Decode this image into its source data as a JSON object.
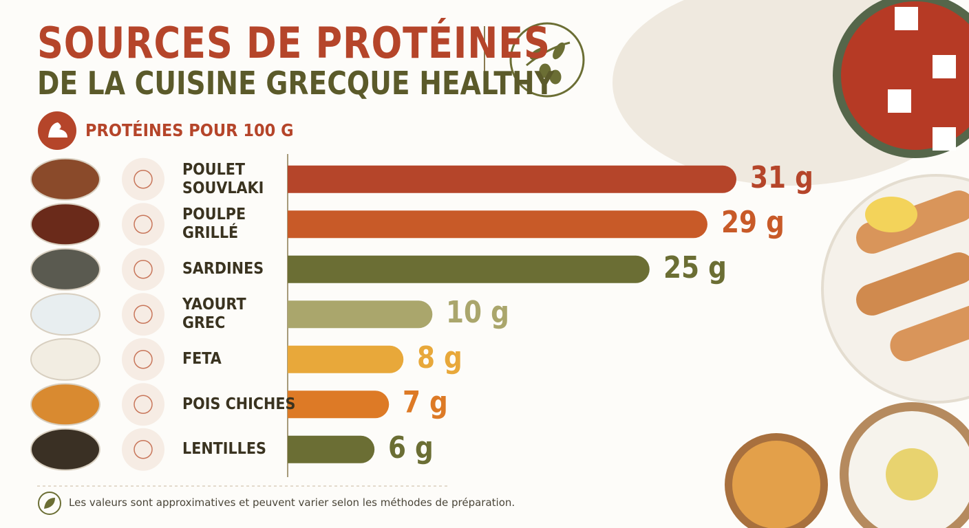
{
  "chart_data": {
    "type": "bar",
    "orientation": "horizontal",
    "title": "SOURCES DE PROTÉINES",
    "subtitle": "DE LA CUISINE GRECQUE HEALTHY",
    "value_axis_label": "PROTÉINES POUR 100 G",
    "categories": [
      "POULET\nSOUVLAKI",
      "POULPE\nGRILLÉ",
      "SARDINES",
      "YAOURT\nGREC",
      "FETA",
      "POIS CHICHES",
      "LENTILLES"
    ],
    "values": [
      31,
      29,
      25,
      10,
      8,
      7,
      6
    ],
    "value_labels": [
      "31 g",
      "29 g",
      "25 g",
      "10 g",
      "8 g",
      "7 g",
      "6 g"
    ],
    "colors": [
      "#b5452a",
      "#c85a28",
      "#6b6e34",
      "#aaa66c",
      "#e8a83a",
      "#dd7a26",
      "#6b6e34"
    ],
    "footnote": "Les valeurs sont approximatives et peuvent varier selon les méthodes de préparation."
  }
}
